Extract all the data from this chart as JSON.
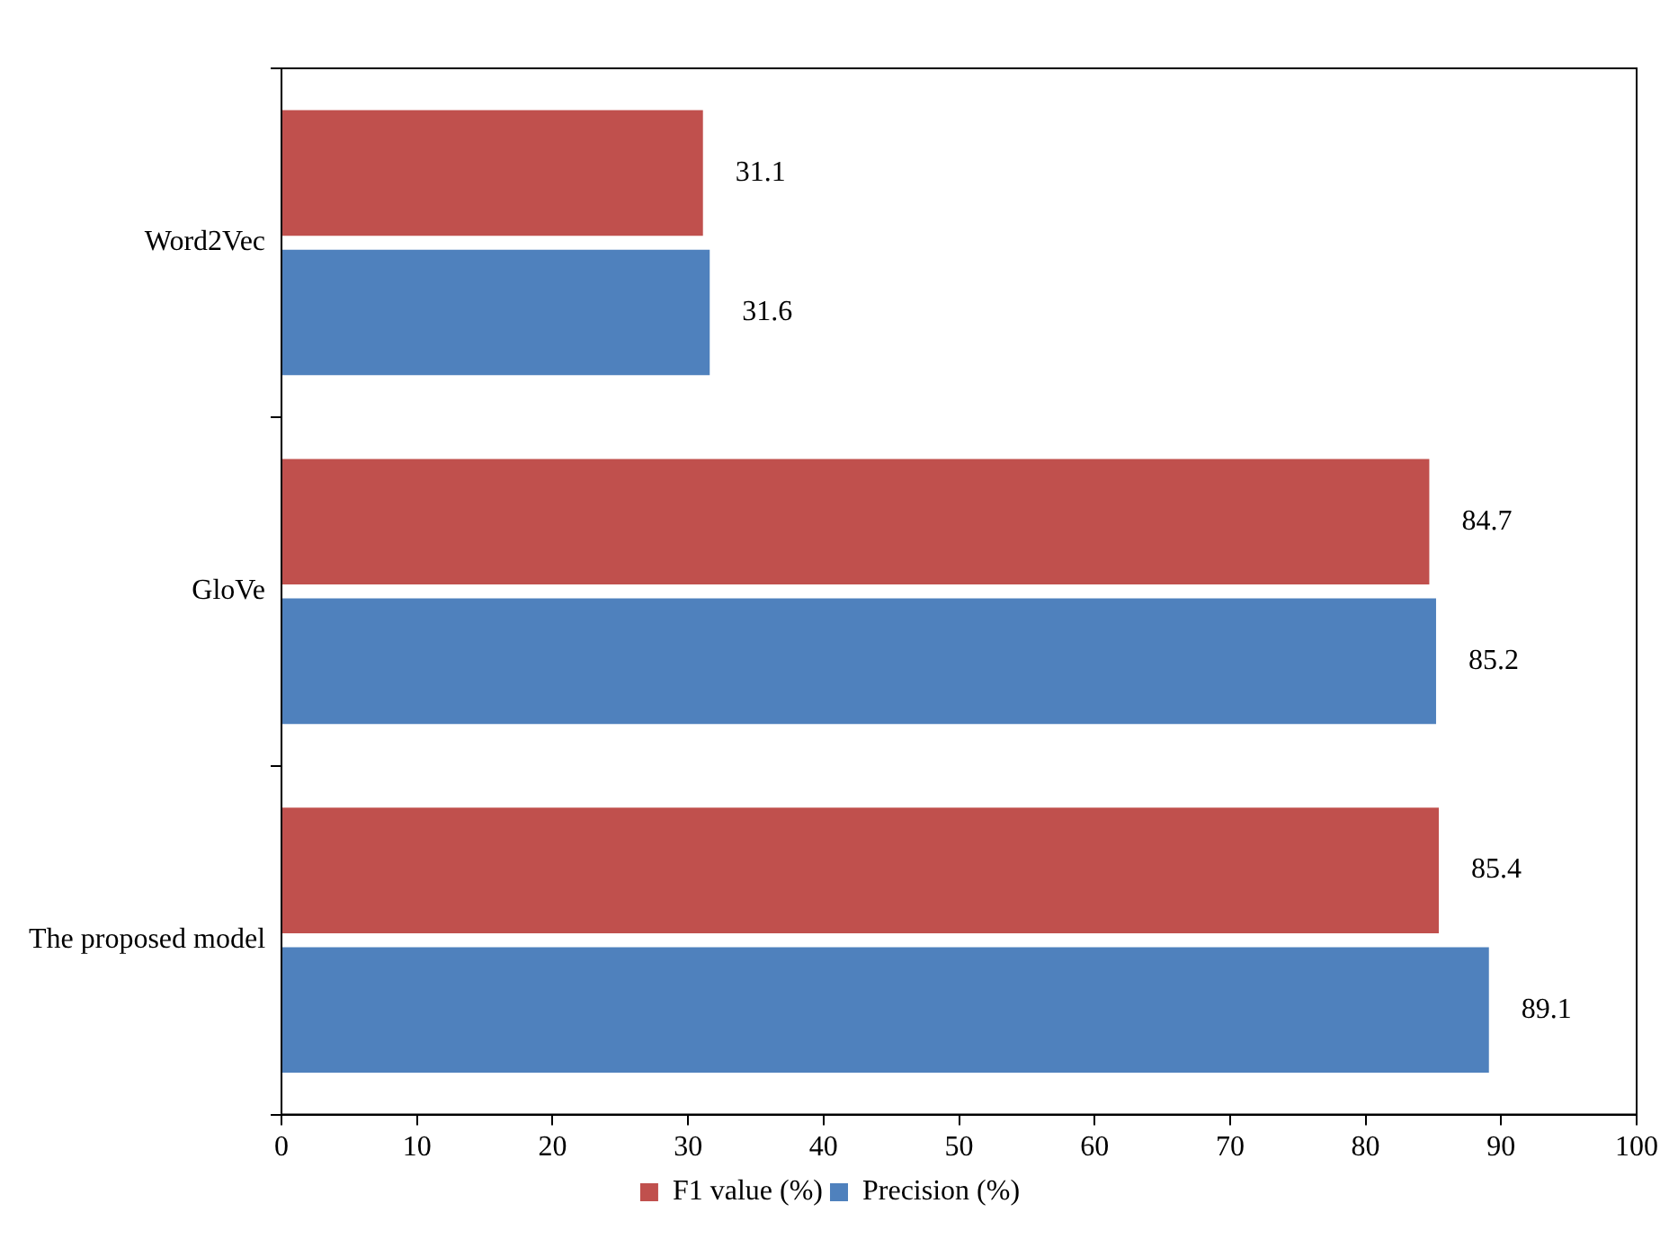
{
  "chart_data": {
    "type": "bar",
    "orientation": "horizontal",
    "categories": [
      "Word2Vec",
      "GloVe",
      "The proposed model"
    ],
    "series": [
      {
        "name": "F1 value (%)",
        "color": "#c0504d",
        "values": [
          31.1,
          84.7,
          85.4
        ]
      },
      {
        "name": "Precision (%)",
        "color": "#4f81bd",
        "values": [
          31.6,
          85.2,
          89.1
        ]
      }
    ],
    "xlim": [
      0,
      100
    ],
    "xticks": [
      0,
      10,
      20,
      30,
      40,
      50,
      60,
      70,
      80,
      90,
      100
    ],
    "grid": false,
    "legend": "bottom",
    "data_labels": true
  }
}
